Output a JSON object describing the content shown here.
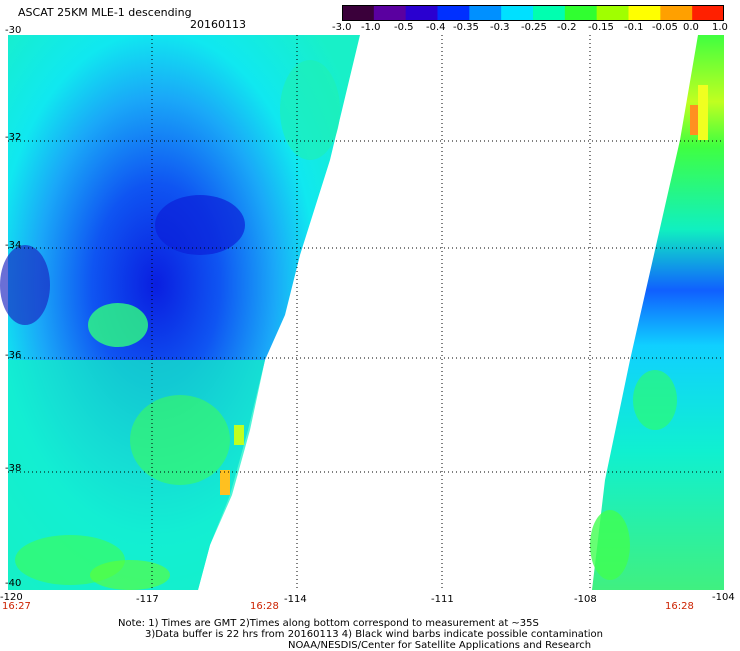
{
  "title": "ASCAT 25KM MLE-1 descending",
  "date": "20160113",
  "colorbar": {
    "labels": [
      "-3.0",
      "-1.0",
      "-0.5",
      "-0.4",
      "-0.35",
      "-0.3",
      "-0.25",
      "-0.2",
      "-0.15",
      "-0.1",
      "-0.05",
      "0.0",
      "1.0"
    ],
    "colors": [
      "#3a003a",
      "#5a00a0",
      "#2a00d0",
      "#0030ff",
      "#0090ff",
      "#00e0ff",
      "#00ffb0",
      "#30ff30",
      "#a0ff00",
      "#ffff00",
      "#ffa000",
      "#ff2000"
    ]
  },
  "y_axis": {
    "labels": [
      "-30",
      "-32",
      "-34",
      "-36",
      "-38",
      "-40"
    ]
  },
  "x_axis": {
    "labels": [
      "-120",
      "-117",
      "-114",
      "-111",
      "-108",
      "-104"
    ]
  },
  "times": [
    "16:27",
    "16:28",
    "16:28"
  ],
  "notes": [
    "Note: 1) Times are GMT 2)Times along bottom correspond to measurement at ~35S",
    "3)Data buffer is 22 hrs from 20160113 4) Black wind barbs indicate possible contamination",
    "NOAA/NESDIS/Center for Satellite Applications and Research"
  ]
}
